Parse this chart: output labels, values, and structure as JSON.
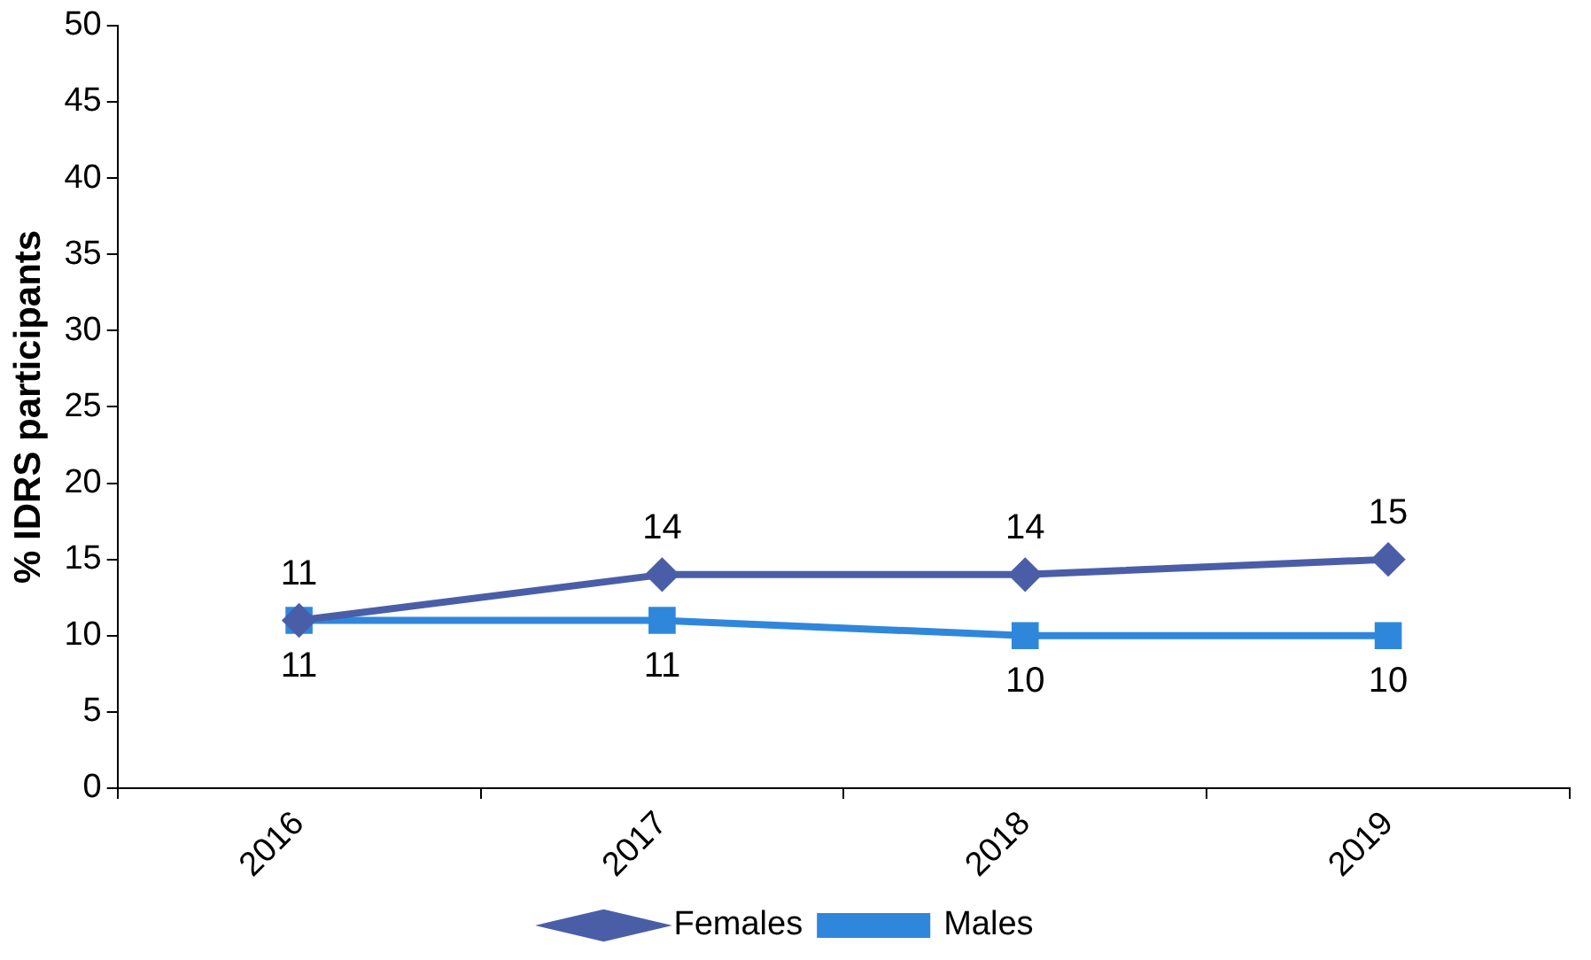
{
  "chart_data": {
    "type": "line",
    "ylabel": "% IDRS participants",
    "categories": [
      "2016",
      "2017",
      "2018",
      "2019"
    ],
    "series": [
      {
        "name": "Females",
        "color": "#4a5ea8",
        "values": [
          11,
          14,
          14,
          15
        ],
        "marker": "diamond"
      },
      {
        "name": "Males",
        "color": "#2f87db",
        "values": [
          11,
          11,
          10,
          10
        ],
        "marker": "square"
      }
    ],
    "ylim": [
      0,
      50
    ],
    "yticks": [
      0,
      5,
      10,
      15,
      20,
      25,
      30,
      35,
      40,
      45,
      50
    ],
    "grid": false,
    "legend": "bottom",
    "data_labels": true,
    "line_style": "solid"
  }
}
